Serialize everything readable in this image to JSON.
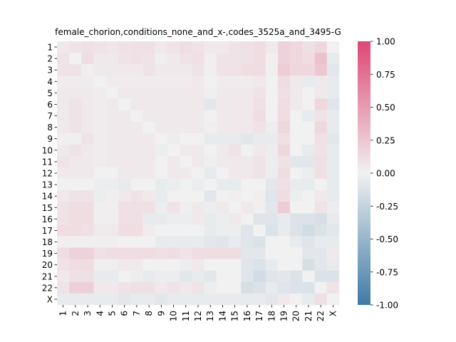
{
  "chart_data": {
    "type": "heatmap",
    "title": "female_chorion,conditions_none_and_x-,codes_3525a_and_3495-G",
    "xlabel": "",
    "ylabel": "",
    "categories": [
      "1",
      "2",
      "3",
      "4",
      "5",
      "6",
      "7",
      "8",
      "9",
      "10",
      "11",
      "12",
      "13",
      "14",
      "15",
      "16",
      "17",
      "18",
      "19",
      "20",
      "21",
      "22",
      "X"
    ],
    "vmin": -1.0,
    "vmax": 1.0,
    "colorbar_ticks": [
      "-1.00",
      "-0.75",
      "-0.50",
      "-0.25",
      "0.00",
      "0.25",
      "0.50",
      "0.75",
      "1.00"
    ],
    "colormap": {
      "negative": "#3f7aa6",
      "center": "#f1f1f1",
      "positive": "#dd4774"
    },
    "matrix": [
      [
        0.05,
        0.08,
        0.1,
        0.08,
        0.07,
        0.09,
        0.1,
        0.1,
        0.05,
        0.08,
        0.12,
        0.08,
        0.05,
        0.05,
        0.08,
        0.1,
        0.12,
        0.05,
        0.18,
        0.15,
        0.1,
        0.15,
        0.0
      ],
      [
        0.08,
        0.0,
        0.12,
        0.05,
        0.05,
        0.08,
        0.1,
        0.08,
        0.02,
        0.05,
        0.08,
        0.1,
        0.02,
        0.08,
        0.08,
        0.1,
        0.12,
        0.02,
        0.18,
        0.15,
        0.12,
        0.28,
        -0.05
      ],
      [
        0.08,
        0.08,
        0.02,
        0.05,
        0.05,
        0.05,
        0.05,
        0.08,
        0.05,
        0.05,
        0.05,
        0.08,
        0.02,
        0.08,
        0.08,
        0.12,
        0.12,
        0.02,
        0.22,
        0.15,
        0.15,
        0.25,
        -0.08
      ],
      [
        0.03,
        0.03,
        0.03,
        0.0,
        0.03,
        0.03,
        0.03,
        0.03,
        0.03,
        0.03,
        0.03,
        0.05,
        0.0,
        0.03,
        0.03,
        0.03,
        0.05,
        0.0,
        0.12,
        0.05,
        -0.05,
        0.05,
        -0.05
      ],
      [
        0.05,
        0.05,
        0.05,
        0.03,
        0.0,
        0.05,
        0.05,
        0.05,
        0.05,
        0.05,
        0.05,
        0.05,
        0.02,
        0.05,
        0.05,
        0.05,
        0.08,
        0.0,
        0.1,
        0.05,
        0.0,
        0.05,
        -0.05
      ],
      [
        0.05,
        0.08,
        0.05,
        0.03,
        0.05,
        0.0,
        0.05,
        0.05,
        0.05,
        0.05,
        0.05,
        0.05,
        -0.08,
        0.05,
        0.05,
        0.05,
        0.1,
        0.0,
        0.12,
        0.05,
        0.0,
        0.15,
        -0.1
      ],
      [
        0.05,
        0.08,
        0.05,
        0.03,
        0.05,
        0.05,
        0.0,
        0.05,
        0.05,
        0.05,
        0.05,
        0.05,
        0.0,
        0.05,
        0.05,
        0.05,
        0.12,
        0.0,
        0.12,
        0.0,
        -0.05,
        0.08,
        -0.05
      ],
      [
        0.05,
        0.08,
        0.05,
        0.03,
        0.05,
        0.05,
        0.05,
        0.0,
        0.05,
        0.05,
        0.05,
        0.05,
        0.02,
        0.05,
        0.05,
        0.05,
        0.08,
        -0.03,
        0.15,
        0.0,
        0.0,
        0.15,
        -0.05
      ],
      [
        0.02,
        0.02,
        0.08,
        0.03,
        0.05,
        0.05,
        0.05,
        0.05,
        0.0,
        -0.03,
        0.0,
        0.0,
        -0.05,
        -0.05,
        -0.05,
        -0.08,
        -0.05,
        -0.05,
        0.1,
        0.0,
        0.0,
        0.1,
        -0.08
      ],
      [
        0.05,
        0.08,
        0.05,
        0.03,
        0.05,
        0.05,
        0.05,
        0.05,
        -0.03,
        0.0,
        0.05,
        0.05,
        0.0,
        0.05,
        0.08,
        0.0,
        0.05,
        -0.03,
        0.15,
        0.0,
        -0.05,
        0.08,
        -0.05
      ],
      [
        0.08,
        0.05,
        0.05,
        0.03,
        0.05,
        0.05,
        0.05,
        0.05,
        0.0,
        0.05,
        0.0,
        0.05,
        0.02,
        0.05,
        0.05,
        0.05,
        0.08,
        -0.03,
        0.08,
        -0.08,
        -0.08,
        0.1,
        -0.05
      ],
      [
        0.05,
        0.05,
        0.05,
        0.0,
        0.0,
        0.05,
        0.05,
        0.05,
        0.0,
        0.05,
        0.05,
        0.0,
        -0.05,
        0.0,
        0.05,
        0.05,
        0.08,
        -0.03,
        0.12,
        0.0,
        -0.03,
        0.1,
        -0.05
      ],
      [
        0.0,
        0.0,
        0.0,
        -0.03,
        -0.03,
        -0.05,
        0.0,
        0.0,
        -0.05,
        -0.03,
        0.0,
        -0.03,
        0.0,
        -0.05,
        -0.05,
        0.0,
        0.0,
        -0.08,
        0.1,
        -0.05,
        -0.05,
        0.0,
        -0.05
      ],
      [
        0.05,
        0.08,
        0.08,
        -0.03,
        0.02,
        0.05,
        0.08,
        0.05,
        -0.05,
        0.0,
        0.0,
        0.0,
        -0.08,
        0.0,
        0.02,
        0.0,
        0.02,
        -0.1,
        0.12,
        -0.03,
        0.0,
        0.05,
        -0.05
      ],
      [
        0.08,
        0.12,
        0.12,
        0.02,
        0.02,
        0.1,
        0.1,
        0.1,
        -0.03,
        0.08,
        0.02,
        0.05,
        -0.03,
        0.05,
        0.0,
        0.05,
        0.02,
        -0.08,
        0.22,
        0.0,
        0.0,
        0.08,
        -0.03
      ],
      [
        0.08,
        0.12,
        0.12,
        0.02,
        0.02,
        0.1,
        0.1,
        -0.05,
        -0.05,
        -0.03,
        -0.03,
        0.05,
        -0.05,
        -0.03,
        0.05,
        0.0,
        -0.1,
        -0.1,
        -0.05,
        -0.12,
        -0.12,
        -0.15,
        -0.05
      ],
      [
        0.12,
        0.12,
        0.1,
        0.05,
        0.05,
        0.12,
        0.12,
        0.03,
        0.0,
        0.0,
        0.0,
        0.0,
        -0.05,
        -0.03,
        -0.03,
        -0.1,
        0.0,
        -0.12,
        -0.05,
        -0.12,
        -0.18,
        -0.12,
        -0.08
      ],
      [
        0.02,
        0.02,
        0.02,
        0.02,
        0.02,
        0.0,
        0.0,
        0.0,
        -0.05,
        -0.05,
        -0.05,
        -0.05,
        -0.08,
        -0.1,
        -0.05,
        -0.1,
        -0.12,
        0.0,
        0.0,
        -0.05,
        -0.1,
        -0.05,
        -0.05
      ],
      [
        0.12,
        0.18,
        0.18,
        0.1,
        0.12,
        0.12,
        0.12,
        0.12,
        0.1,
        0.12,
        0.08,
        0.12,
        0.12,
        0.12,
        0.12,
        -0.08,
        -0.08,
        0.0,
        0.0,
        0.0,
        -0.08,
        -0.08,
        0.05
      ],
      [
        0.08,
        0.12,
        0.12,
        0.02,
        0.02,
        0.05,
        0.05,
        0.0,
        0.0,
        0.0,
        -0.03,
        0.05,
        0.0,
        0.0,
        0.0,
        -0.1,
        -0.12,
        -0.05,
        0.0,
        0.0,
        -0.15,
        -0.08,
        -0.05
      ],
      [
        0.05,
        0.1,
        0.1,
        -0.05,
        -0.05,
        0.0,
        -0.03,
        -0.05,
        -0.03,
        -0.03,
        -0.08,
        -0.05,
        -0.08,
        0.0,
        0.0,
        -0.1,
        -0.18,
        -0.1,
        -0.08,
        -0.12,
        0.0,
        -0.12,
        -0.12
      ],
      [
        0.08,
        0.2,
        0.2,
        0.05,
        0.05,
        0.08,
        0.1,
        0.1,
        0.05,
        0.08,
        0.05,
        0.08,
        -0.03,
        0.0,
        0.0,
        -0.15,
        -0.12,
        -0.05,
        -0.1,
        -0.12,
        -0.12,
        0.0,
        0.08
      ],
      [
        -0.05,
        -0.05,
        -0.05,
        -0.05,
        -0.05,
        -0.08,
        -0.05,
        -0.05,
        -0.08,
        -0.05,
        -0.05,
        -0.05,
        -0.05,
        -0.05,
        -0.05,
        -0.05,
        -0.05,
        -0.08,
        0.05,
        0.0,
        -0.05,
        0.1,
        0.0
      ]
    ]
  }
}
